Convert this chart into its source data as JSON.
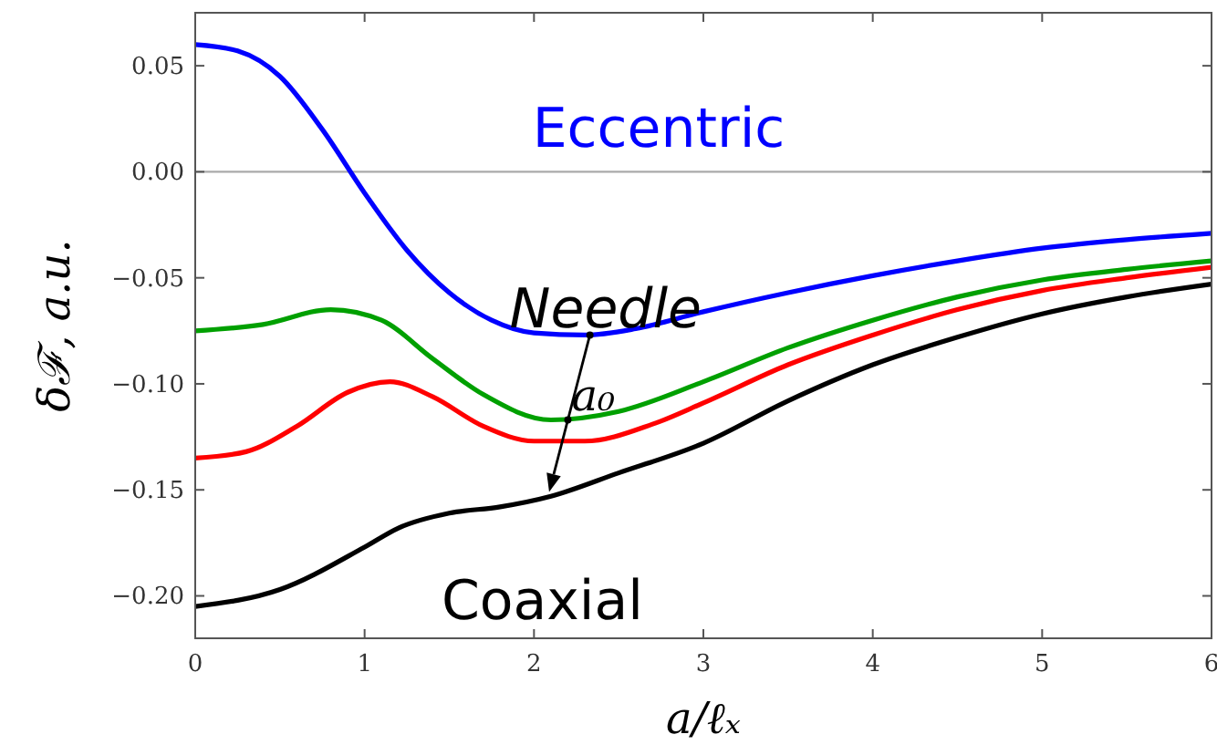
{
  "chart_data": {
    "type": "line",
    "xlabel": "a/ℓₓ",
    "ylabel": "δℱ, a.u.",
    "xlim": [
      0,
      6
    ],
    "ylim": [
      -0.22,
      0.075
    ],
    "xticks": [
      0,
      1,
      2,
      3,
      4,
      5,
      6
    ],
    "yticks": [
      {
        "value": -0.2,
        "label": "−0.20"
      },
      {
        "value": -0.15,
        "label": "−0.15"
      },
      {
        "value": -0.1,
        "label": "−0.10"
      },
      {
        "value": -0.05,
        "label": "−0.05"
      },
      {
        "value": 0,
        "label": "0.00"
      },
      {
        "value": 0.05,
        "label": "0.05"
      }
    ],
    "grid": false,
    "marker": "none",
    "line_style": "solid",
    "ref_lines": [
      {
        "axis": "y",
        "value": 0,
        "color": "#aaaaaa"
      }
    ],
    "annotations": [
      {
        "text": "Needle",
        "x": 2.33,
        "y": -0.077
      },
      {
        "text": "a₀",
        "x": 2.2,
        "y": -0.117
      }
    ],
    "series": [
      {
        "name": "Eccentric",
        "color": "#0000ff",
        "x": [
          0,
          0.25,
          0.5,
          0.75,
          1,
          1.25,
          1.5,
          1.75,
          2,
          2.3,
          2.6,
          3,
          3.5,
          4,
          4.5,
          5,
          5.5,
          6
        ],
        "values": [
          0.06,
          0.057,
          0.045,
          0.02,
          -0.01,
          -0.037,
          -0.057,
          -0.07,
          -0.076,
          -0.077,
          -0.074,
          -0.066,
          -0.057,
          -0.049,
          -0.042,
          -0.036,
          -0.032,
          -0.029
        ]
      },
      {
        "color": "#00a000",
        "x": [
          0,
          0.4,
          0.8,
          1.1,
          1.4,
          1.7,
          2.1,
          2.5,
          3,
          3.5,
          4,
          4.5,
          5,
          5.5,
          6
        ],
        "values": [
          -0.075,
          -0.072,
          -0.065,
          -0.07,
          -0.088,
          -0.105,
          -0.117,
          -0.113,
          -0.099,
          -0.083,
          -0.07,
          -0.059,
          -0.051,
          -0.046,
          -0.042
        ]
      },
      {
        "color": "#ff0000",
        "x": [
          0,
          0.3,
          0.6,
          0.9,
          1.15,
          1.4,
          1.7,
          2,
          2.3,
          2.7,
          3,
          3.5,
          4,
          4.5,
          5,
          5.5,
          6
        ],
        "values": [
          -0.135,
          -0.132,
          -0.12,
          -0.104,
          -0.099,
          -0.106,
          -0.12,
          -0.127,
          -0.127,
          -0.119,
          -0.109,
          -0.091,
          -0.077,
          -0.065,
          -0.056,
          -0.05,
          -0.045
        ]
      },
      {
        "name": "Coaxial",
        "color": "#000000",
        "x": [
          0,
          0.5,
          1,
          1.2,
          1.5,
          1.8,
          2.1,
          2.5,
          3,
          3.5,
          4,
          4.5,
          5,
          5.5,
          6
        ],
        "values": [
          -0.205,
          -0.197,
          -0.177,
          -0.168,
          -0.161,
          -0.158,
          -0.153,
          -0.142,
          -0.128,
          -0.108,
          -0.091,
          -0.078,
          -0.067,
          -0.059,
          -0.053
        ]
      }
    ]
  }
}
